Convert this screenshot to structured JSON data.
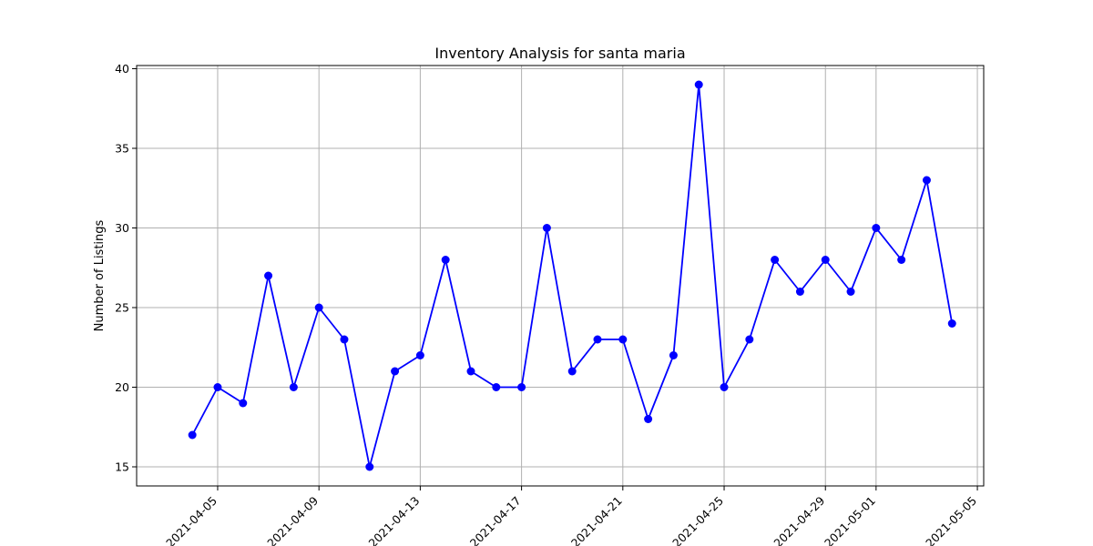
{
  "chart_data": {
    "type": "line",
    "title": "Inventory Analysis for santa maria",
    "xlabel": "",
    "ylabel": "Number of Listings",
    "x": [
      "2021-04-04",
      "2021-04-05",
      "2021-04-06",
      "2021-04-07",
      "2021-04-08",
      "2021-04-09",
      "2021-04-10",
      "2021-04-11",
      "2021-04-12",
      "2021-04-13",
      "2021-04-14",
      "2021-04-15",
      "2021-04-16",
      "2021-04-17",
      "2021-04-18",
      "2021-04-19",
      "2021-04-20",
      "2021-04-21",
      "2021-04-22",
      "2021-04-23",
      "2021-04-24",
      "2021-04-25",
      "2021-04-26",
      "2021-04-27",
      "2021-04-28",
      "2021-04-29",
      "2021-04-30",
      "2021-05-01",
      "2021-05-02",
      "2021-05-03",
      "2021-05-04"
    ],
    "series": [
      {
        "values": [
          17,
          20,
          19,
          27,
          20,
          25,
          23,
          15,
          21,
          22,
          28,
          21,
          20,
          20,
          30,
          21,
          23,
          23,
          18,
          22,
          39,
          20,
          23,
          28,
          26,
          28,
          26,
          30,
          28,
          33,
          24
        ],
        "color": "#0000ff",
        "marker": "circle"
      }
    ],
    "xlim": [
      "2021-04-02",
      "2021-05-05"
    ],
    "ylim": [
      13.8,
      40.2
    ],
    "x_ticks": [
      "2021-04-05",
      "2021-04-09",
      "2021-04-13",
      "2021-04-17",
      "2021-04-21",
      "2021-04-25",
      "2021-04-29",
      "2021-05-01",
      "2021-05-05"
    ],
    "y_ticks": [
      15,
      20,
      25,
      30,
      35,
      40
    ],
    "grid": true
  }
}
